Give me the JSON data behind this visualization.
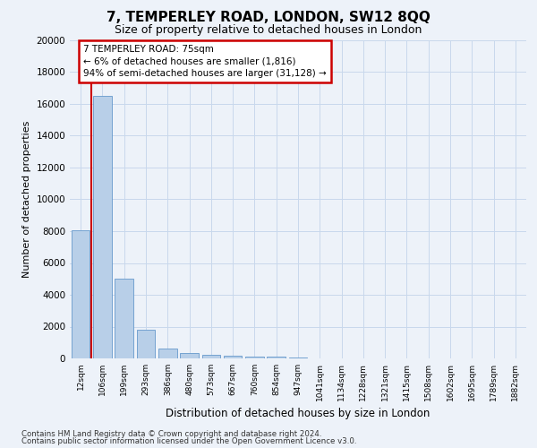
{
  "title": "7, TEMPERLEY ROAD, LONDON, SW12 8QQ",
  "subtitle": "Size of property relative to detached houses in London",
  "xlabel": "Distribution of detached houses by size in London",
  "ylabel": "Number of detached properties",
  "categories": [
    "12sqm",
    "106sqm",
    "199sqm",
    "293sqm",
    "386sqm",
    "480sqm",
    "573sqm",
    "667sqm",
    "760sqm",
    "854sqm",
    "947sqm",
    "1041sqm",
    "1134sqm",
    "1228sqm",
    "1321sqm",
    "1415sqm",
    "1508sqm",
    "1602sqm",
    "1695sqm",
    "1789sqm",
    "1882sqm"
  ],
  "values": [
    8050,
    16500,
    5000,
    1800,
    600,
    360,
    240,
    190,
    130,
    90,
    30,
    10,
    5,
    3,
    2,
    2,
    1,
    1,
    1,
    1,
    0
  ],
  "bar_color": "#b8cfe8",
  "bar_edge_color": "#6699cc",
  "property_line_x": 0.5,
  "annotation_title": "7 TEMPERLEY ROAD: 75sqm",
  "annotation_line1": "← 6% of detached houses are smaller (1,816)",
  "annotation_line2": "94% of semi-detached houses are larger (31,128) →",
  "annotation_box_color": "#ffffff",
  "annotation_border_color": "#cc0000",
  "ylim": [
    0,
    20000
  ],
  "yticks": [
    0,
    2000,
    4000,
    6000,
    8000,
    10000,
    12000,
    14000,
    16000,
    18000,
    20000
  ],
  "grid_color": "#c8d8ec",
  "footer1": "Contains HM Land Registry data © Crown copyright and database right 2024.",
  "footer2": "Contains public sector information licensed under the Open Government Licence v3.0.",
  "background_color": "#edf2f9",
  "plot_bg_color": "#edf2f9",
  "red_line_color": "#cc0000",
  "title_fontsize": 11,
  "subtitle_fontsize": 9
}
